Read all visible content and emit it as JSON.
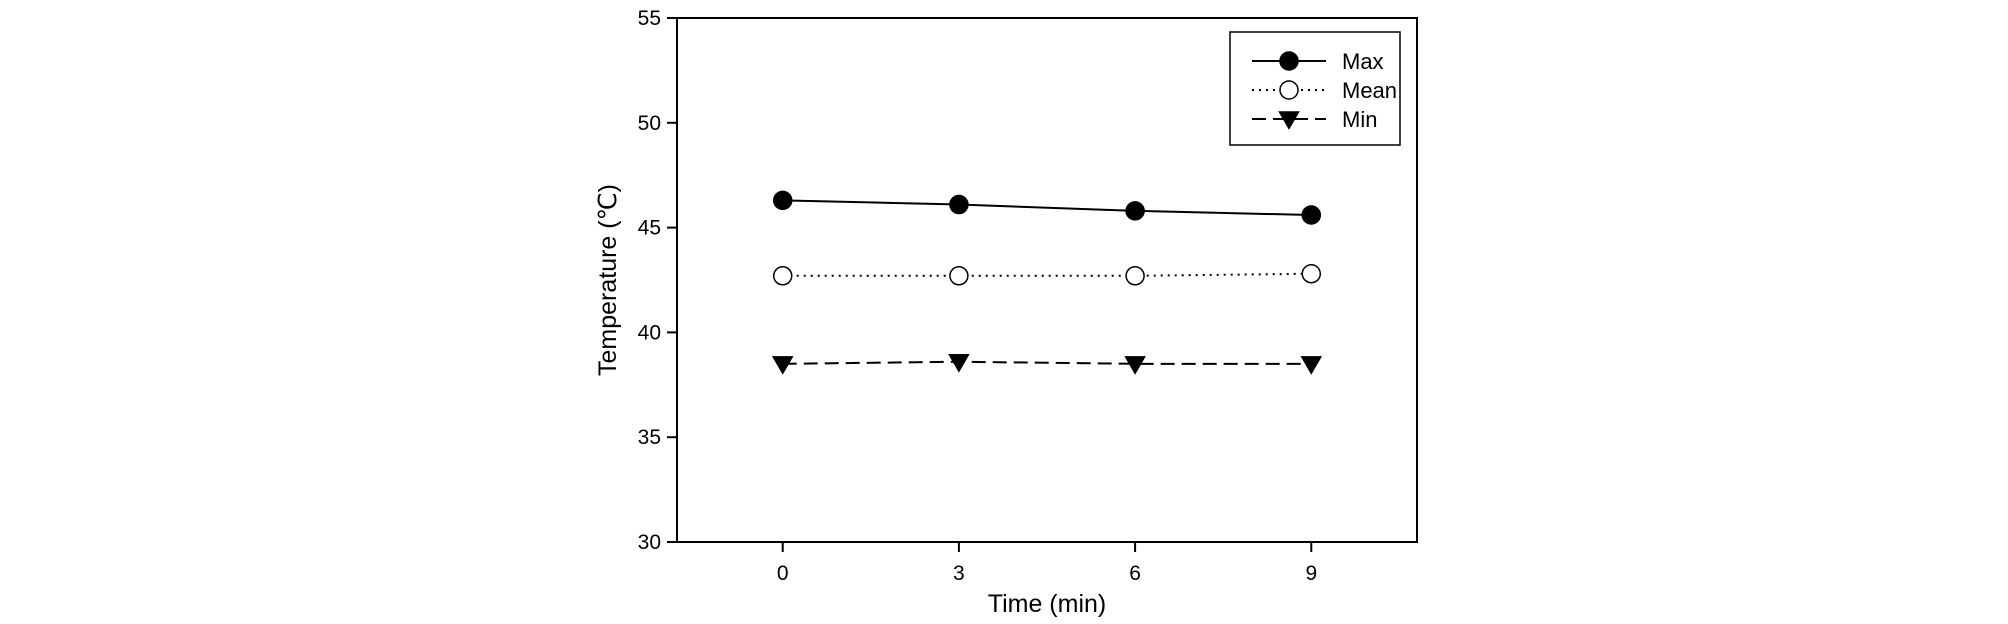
{
  "chart_data": {
    "type": "line",
    "title": "",
    "xlabel": "Time (min)",
    "ylabel": "Temperature (℃)",
    "x": [
      0,
      3,
      6,
      9
    ],
    "x_ticks": [
      "0",
      "3",
      "6",
      "9"
    ],
    "xlim": [
      -1.8,
      10.8
    ],
    "ylim": [
      30,
      55
    ],
    "y_ticks": [
      "30",
      "35",
      "40",
      "45",
      "50",
      "55"
    ],
    "grid": false,
    "legend_position": "top-right",
    "series": [
      {
        "name": "Max",
        "values": [
          46.3,
          46.1,
          45.8,
          45.6
        ],
        "marker": "filled-circle",
        "line": "solid"
      },
      {
        "name": "Mean",
        "values": [
          42.7,
          42.7,
          42.7,
          42.8
        ],
        "marker": "open-circle",
        "line": "dotted"
      },
      {
        "name": "Min",
        "values": [
          38.5,
          38.6,
          38.5,
          38.5
        ],
        "marker": "filled-triangle-down",
        "line": "dashed"
      }
    ]
  }
}
